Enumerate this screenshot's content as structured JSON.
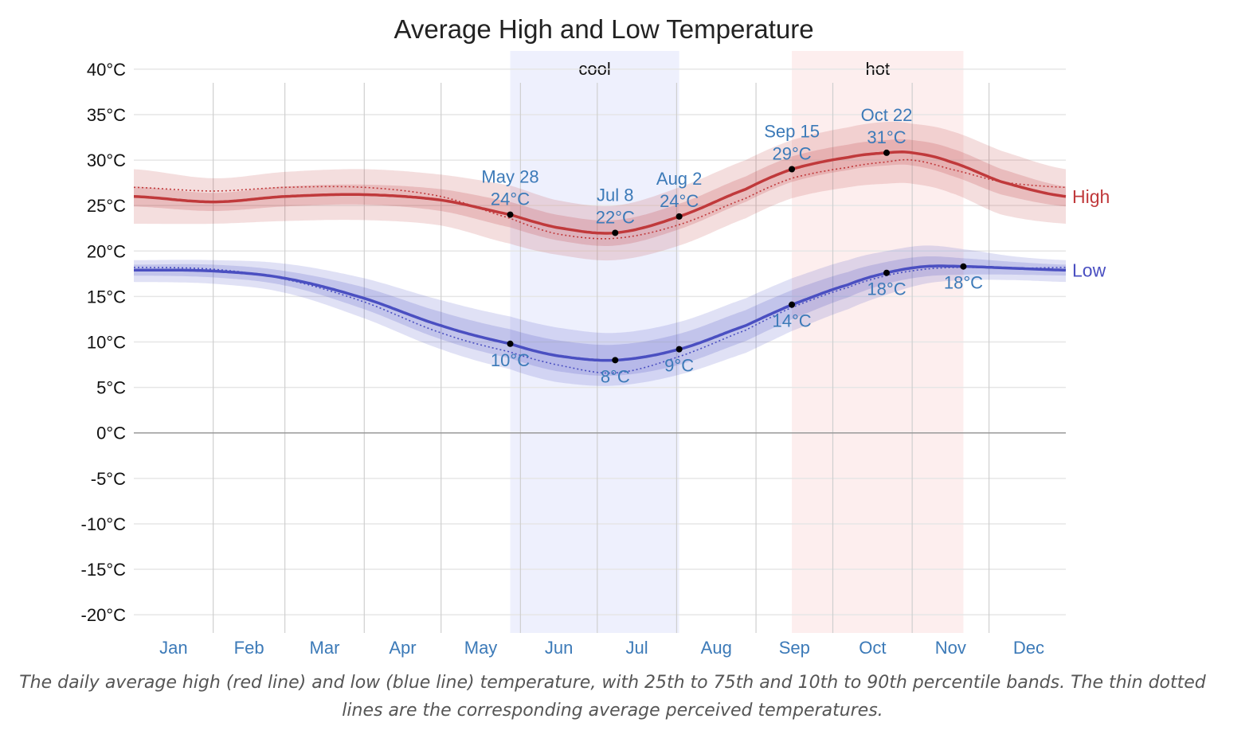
{
  "chart_data": {
    "type": "line",
    "title": "Average High and Low Temperature",
    "y_unit": "°C",
    "ylim": [
      -22,
      42
    ],
    "y_ticks": [
      40,
      35,
      30,
      25,
      20,
      15,
      10,
      5,
      0,
      -5,
      -10,
      -15,
      -20
    ],
    "y_tick_labels": [
      "40°C",
      "35°C",
      "30°C",
      "25°C",
      "20°C",
      "15°C",
      "10°C",
      "5°C",
      "0°C",
      "-5°C",
      "-10°C",
      "-15°C",
      "-20°C"
    ],
    "x_range_days": [
      1,
      365
    ],
    "month_labels": [
      "Jan",
      "Feb",
      "Mar",
      "Apr",
      "May",
      "Jun",
      "Jul",
      "Aug",
      "Sep",
      "Oct",
      "Nov",
      "Dec"
    ],
    "grid": true,
    "legend_placement": "right",
    "seasons": [
      {
        "label": "cool",
        "start_day": 148,
        "end_day": 214,
        "color": "#eef0fd"
      },
      {
        "label": "hot",
        "start_day": 258,
        "end_day": 325,
        "color": "#fdeeee"
      }
    ],
    "series": [
      {
        "name": "High",
        "color": "#c0393b",
        "x": [
          1,
          32,
          60,
          91,
          121,
          148,
          166,
          189,
          214,
          240,
          258,
          280,
          295,
          305,
          320,
          340,
          365
        ],
        "values": [
          26.0,
          25.4,
          26.0,
          26.2,
          25.6,
          24.0,
          22.6,
          22.0,
          23.8,
          26.8,
          29.0,
          30.3,
          30.8,
          30.8,
          29.8,
          27.6,
          26.0
        ],
        "p25_75": [
          [
            24.9,
            27.1
          ],
          [
            24.4,
            26.4
          ],
          [
            24.9,
            27.1
          ],
          [
            25.1,
            27.3
          ],
          [
            24.4,
            26.8
          ],
          [
            22.6,
            25.4
          ],
          [
            21.2,
            24.0
          ],
          [
            20.6,
            23.4
          ],
          [
            22.4,
            25.2
          ],
          [
            25.4,
            28.2
          ],
          [
            27.6,
            30.4
          ],
          [
            28.9,
            31.7
          ],
          [
            29.4,
            32.2
          ],
          [
            29.4,
            32.2
          ],
          [
            28.3,
            31.3
          ],
          [
            26.2,
            29.0
          ],
          [
            24.9,
            27.1
          ]
        ],
        "p10_90": [
          [
            23.0,
            29.0
          ],
          [
            23.0,
            28.0
          ],
          [
            23.3,
            28.7
          ],
          [
            23.4,
            29.0
          ],
          [
            22.8,
            28.4
          ],
          [
            20.8,
            27.2
          ],
          [
            19.6,
            25.6
          ],
          [
            19.0,
            25.0
          ],
          [
            20.6,
            27.0
          ],
          [
            23.6,
            30.0
          ],
          [
            25.8,
            32.2
          ],
          [
            27.0,
            33.6
          ],
          [
            27.4,
            34.2
          ],
          [
            27.4,
            34.0
          ],
          [
            26.4,
            33.2
          ],
          [
            24.0,
            31.0
          ],
          [
            23.0,
            29.0
          ]
        ],
        "perceived": [
          27.0,
          26.6,
          27.0,
          27.0,
          26.0,
          23.6,
          21.9,
          21.4,
          22.9,
          25.8,
          28.0,
          29.2,
          29.8,
          30.0,
          29.0,
          27.6,
          27.0
        ],
        "annotations": [
          {
            "x": 148,
            "y": 24.0,
            "date": "May 28",
            "value": "24°C",
            "position": "above"
          },
          {
            "x": 189,
            "y": 22.0,
            "date": "Jul 8",
            "value": "22°C",
            "position": "above"
          },
          {
            "x": 214,
            "y": 23.8,
            "date": "Aug 2",
            "value": "24°C",
            "position": "above"
          },
          {
            "x": 258,
            "y": 29.0,
            "date": "Sep 15",
            "value": "29°C",
            "position": "above"
          },
          {
            "x": 295,
            "y": 30.8,
            "date": "Oct 22",
            "value": "31°C",
            "position": "above"
          }
        ]
      },
      {
        "name": "Low",
        "color": "#4a4fc1",
        "x": [
          1,
          32,
          60,
          91,
          121,
          148,
          166,
          189,
          214,
          240,
          258,
          280,
          295,
          310,
          325,
          345,
          365
        ],
        "values": [
          17.9,
          17.8,
          17.0,
          14.8,
          11.8,
          9.8,
          8.5,
          8.0,
          9.2,
          11.8,
          14.1,
          16.3,
          17.6,
          18.3,
          18.3,
          18.1,
          17.9
        ],
        "p25_75": [
          [
            17.3,
            18.5
          ],
          [
            17.1,
            18.5
          ],
          [
            16.2,
            17.8
          ],
          [
            13.6,
            16.0
          ],
          [
            10.3,
            13.3
          ],
          [
            8.2,
            11.4
          ],
          [
            6.8,
            10.2
          ],
          [
            6.3,
            9.7
          ],
          [
            7.5,
            10.9
          ],
          [
            10.1,
            13.5
          ],
          [
            12.5,
            15.7
          ],
          [
            14.9,
            17.7
          ],
          [
            16.4,
            18.8
          ],
          [
            17.2,
            19.4
          ],
          [
            17.4,
            19.2
          ],
          [
            17.4,
            18.8
          ],
          [
            17.3,
            18.5
          ]
        ],
        "p10_90": [
          [
            16.6,
            19.0
          ],
          [
            16.4,
            19.0
          ],
          [
            15.4,
            18.6
          ],
          [
            12.6,
            17.0
          ],
          [
            9.2,
            14.6
          ],
          [
            7.0,
            12.8
          ],
          [
            5.6,
            11.6
          ],
          [
            5.2,
            11.0
          ],
          [
            6.4,
            12.2
          ],
          [
            8.8,
            14.8
          ],
          [
            11.2,
            17.0
          ],
          [
            13.6,
            19.0
          ],
          [
            15.2,
            20.0
          ],
          [
            16.4,
            20.6
          ],
          [
            16.8,
            20.2
          ],
          [
            16.8,
            19.4
          ],
          [
            16.6,
            19.0
          ]
        ],
        "perceived": [
          18.2,
          18.0,
          16.9,
          14.4,
          11.0,
          8.9,
          7.5,
          6.6,
          8.4,
          11.3,
          13.8,
          16.0,
          17.3,
          18.0,
          18.2,
          18.1,
          18.2
        ],
        "annotations": [
          {
            "x": 148,
            "y": 9.8,
            "value": "10°C",
            "position": "below"
          },
          {
            "x": 189,
            "y": 8.0,
            "value": "8°C",
            "position": "below"
          },
          {
            "x": 214,
            "y": 9.2,
            "value": "9°C",
            "position": "below"
          },
          {
            "x": 258,
            "y": 14.1,
            "value": "14°C",
            "position": "below"
          },
          {
            "x": 295,
            "y": 17.6,
            "value": "18°C",
            "position": "below"
          },
          {
            "x": 325,
            "y": 18.3,
            "value": "18°C",
            "position": "below"
          }
        ]
      }
    ]
  },
  "caption": "The daily average high (red line) and low (blue line) temperature, with 25th to 75th and 10th to 90th percentile bands. The thin dotted lines are the corresponding average perceived temperatures.",
  "colors": {
    "annotation_text": "#3c7ab8",
    "month_label": "#3c7ab8",
    "grid": "#e6e6e6",
    "month_grid": "#cfcfcf",
    "zero_line": "#999999"
  }
}
